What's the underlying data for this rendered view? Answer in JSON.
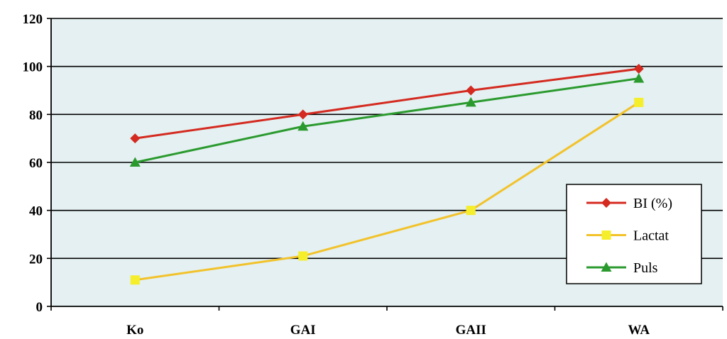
{
  "chart_data": {
    "type": "line",
    "categories": [
      "Ko",
      "GAI",
      "GAII",
      "WA"
    ],
    "ylim": [
      0,
      120
    ],
    "yticks": [
      0,
      20,
      40,
      60,
      80,
      100,
      120
    ],
    "grid": true,
    "legend_position": "right",
    "series": [
      {
        "name": "BI (%)",
        "values": [
          70,
          80,
          90,
          99
        ],
        "color": "#d42a20",
        "marker": "diamond"
      },
      {
        "name": "Lactat",
        "values": [
          11,
          21,
          40,
          85
        ],
        "color": "#f2c22a",
        "marker": "square",
        "marker_color": "#f5ee2a"
      },
      {
        "name": "Puls",
        "values": [
          60,
          75,
          85,
          95
        ],
        "color": "#2a9a2e",
        "marker": "triangle"
      }
    ],
    "colors": {
      "plot_background": "#e4f0f1",
      "gridline": "#000000"
    }
  }
}
